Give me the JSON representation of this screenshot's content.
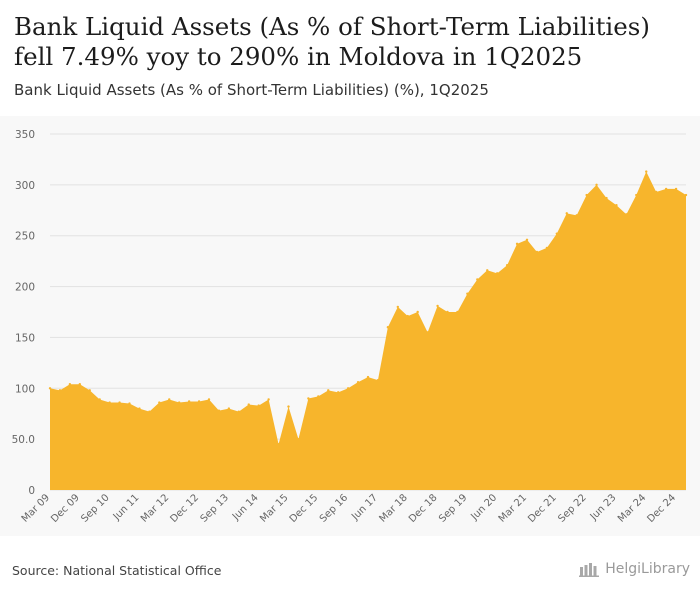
{
  "header": {
    "title_line1": "Bank Liquid Assets (As % of Short-Term Liabilities)",
    "title_line2": "fell 7.49% yoy to 290% in Moldova in 1Q2025",
    "subtitle": "Bank Liquid Assets (As % of Short-Term Liabilities) (%), 1Q2025"
  },
  "footer": {
    "source": "Source: National Statistical Office",
    "logo_text": "HelgiLibrary"
  },
  "colors": {
    "area": "#f7b52c",
    "grid": "#e2e2e2",
    "tick_text": "#666666"
  },
  "chart_data": {
    "type": "area",
    "title": "Bank Liquid Assets (As % of Short-Term Liabilities) (%), 1Q2025",
    "xlabel": "",
    "ylabel": "",
    "ylim": [
      0,
      350
    ],
    "y_ticks": [
      0,
      50,
      100,
      150,
      200,
      250,
      300,
      350
    ],
    "y_tick_labels": [
      "0",
      "50.0",
      "100",
      "150",
      "200",
      "250",
      "300",
      "350"
    ],
    "x_tick_labels": [
      "Mar 09",
      "Dec 09",
      "Sep 10",
      "Jun 11",
      "Mar 12",
      "Dec 12",
      "Sep 13",
      "Jun 14",
      "Mar 15",
      "Dec 15",
      "Sep 16",
      "Jun 17",
      "Mar 18",
      "Dec 18",
      "Sep 19",
      "Jun 20",
      "Mar 21",
      "Dec 21",
      "Sep 22",
      "Jun 23",
      "Mar 24",
      "Dec 24"
    ],
    "x_tick_step": 3,
    "grid": true,
    "series": [
      {
        "name": "Bank Liquid Assets (As % of Short-Term Liabilities) (%)",
        "values": [
          100,
          98,
          104,
          104,
          98,
          89,
          86,
          86,
          85,
          80,
          77,
          86,
          89,
          86,
          87,
          87,
          89,
          78,
          80,
          77,
          84,
          83,
          89,
          45,
          82,
          50,
          90,
          92,
          98,
          96,
          100,
          106,
          111,
          108,
          160,
          180,
          171,
          175,
          155,
          181,
          175,
          175,
          193,
          207,
          216,
          213,
          221,
          242,
          246,
          234,
          238,
          252,
          272,
          270,
          290,
          300,
          287,
          280,
          271,
          290,
          313,
          293,
          296,
          296,
          290
        ]
      }
    ]
  }
}
